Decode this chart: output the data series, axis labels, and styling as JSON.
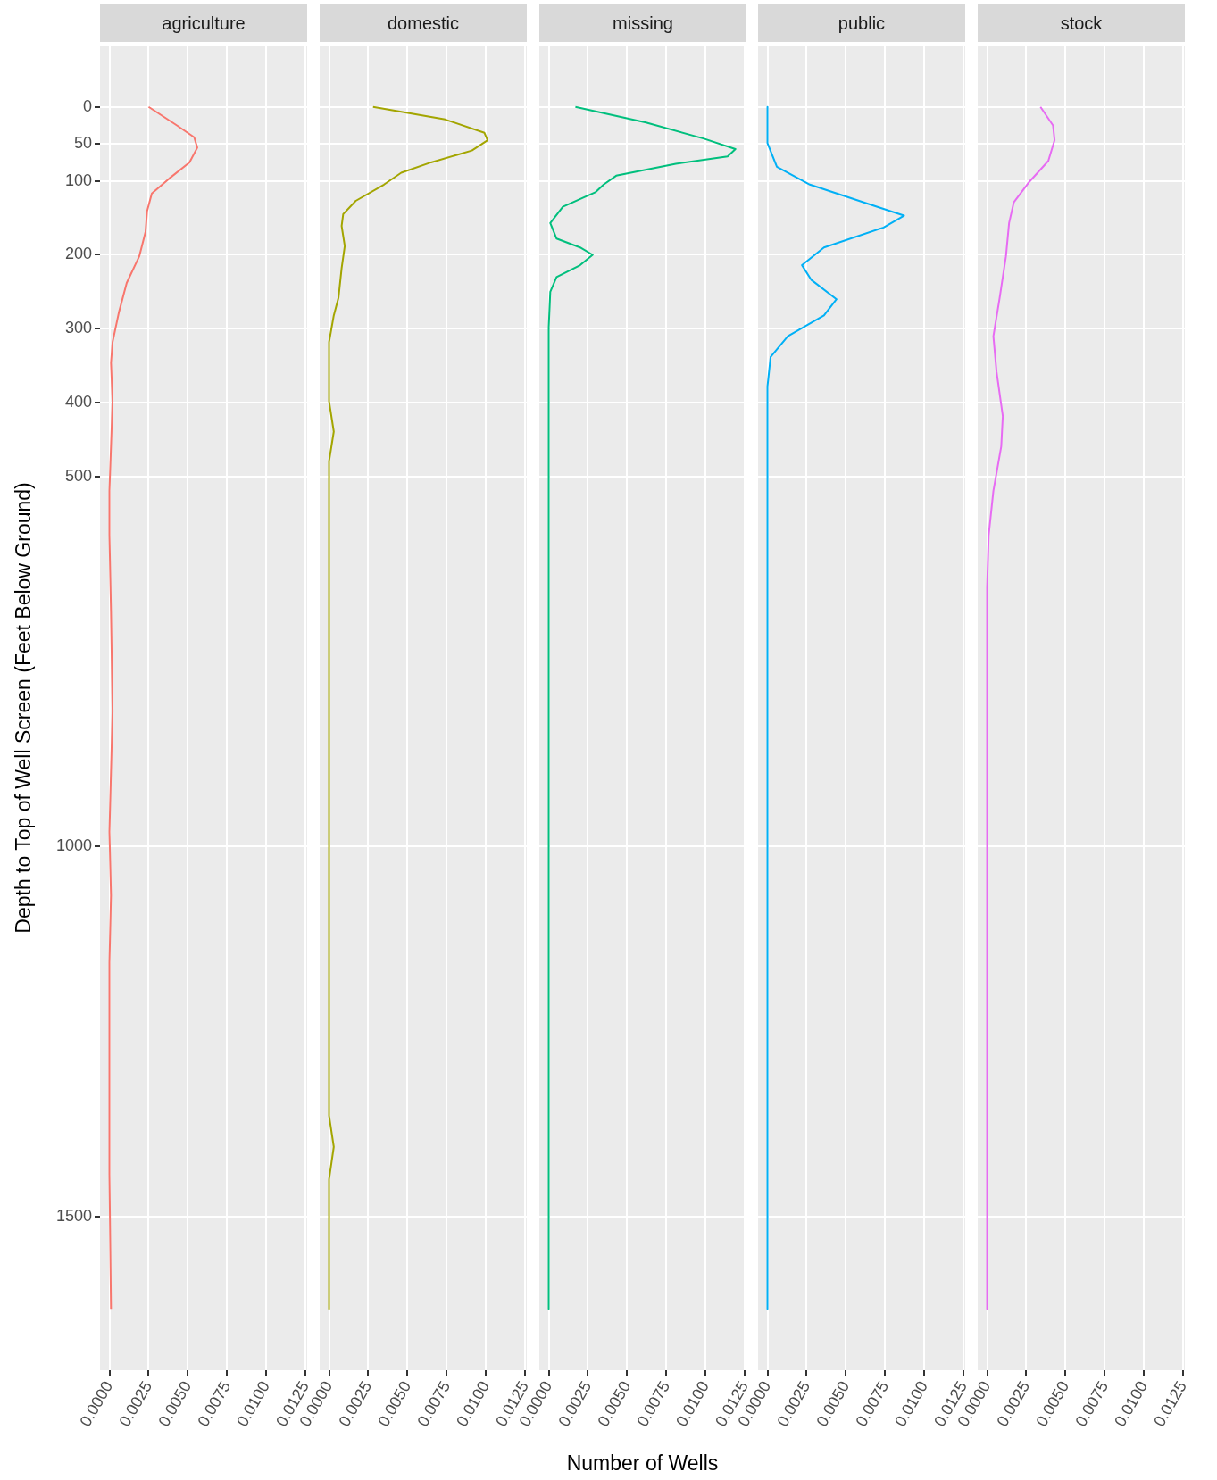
{
  "chart_data": [
    {
      "type": "line",
      "title": "agriculture",
      "ylabel": "Depth to Top of Well Screen (Feet Below Ground)",
      "xlim": [
        -0.0006,
        0.0126
      ],
      "ylim": [
        1708,
        -83
      ],
      "xticks": [
        {
          "value": 0,
          "label": "0.0000"
        },
        {
          "value": 0.0025,
          "label": "0.0025"
        },
        {
          "value": 0.005,
          "label": "0.0050"
        },
        {
          "value": 0.0075,
          "label": "0.0075"
        },
        {
          "value": 0.01,
          "label": "0.0100"
        },
        {
          "value": 0.0125,
          "label": "0.0125"
        }
      ],
      "yticks": [
        0,
        50,
        100,
        200,
        300,
        400,
        500,
        1000,
        1500
      ],
      "grid": true,
      "series": [
        {
          "color": "#f8766d",
          "x": [
            0.0025,
            0.0043,
            0.0054,
            0.0056,
            0.0051,
            0.0038,
            0.0027,
            0.0024,
            0.0023,
            0.0019,
            0.0011,
            0.0006,
            0.0002,
            0.0001,
            0.0002,
            0.0001,
            0,
            0,
            0.0001,
            0.0002,
            0,
            0.0001,
            0,
            0,
            0.0001
          ],
          "values": [
            0,
            25,
            41,
            55,
            75,
            97,
            117,
            141,
            169,
            202,
            238,
            278,
            318,
            346,
            398,
            459,
            519,
            579,
            682,
            817,
            980,
            1066,
            1157,
            1443,
            1625
          ]
        }
      ]
    },
    {
      "type": "line",
      "title": "domestic",
      "tick_labels": "x",
      "xlim": [
        -0.0006,
        0.0126
      ],
      "ylim": [
        1708,
        -83
      ],
      "xticks": [
        {
          "value": 0,
          "label": "0.0000"
        },
        {
          "value": 0.0025,
          "label": "0.0025"
        },
        {
          "value": 0.005,
          "label": "0.0050"
        },
        {
          "value": 0.0075,
          "label": "0.0075"
        },
        {
          "value": 0.01,
          "label": "0.0100"
        },
        {
          "value": 0.0125,
          "label": "0.0125"
        }
      ],
      "yticks": [
        0,
        50,
        100,
        200,
        300,
        400,
        500,
        1000,
        1500
      ],
      "grid": true,
      "series": [
        {
          "color": "#a3a500",
          "x": [
            0.0028,
            0.0074,
            0.0099,
            0.0101,
            0.0091,
            0.0065,
            0.0046,
            0.0035,
            0.0017,
            0.0009,
            0.0008,
            0.001,
            0.0008,
            0.0006,
            0.0003,
            0,
            0,
            0.0003,
            0,
            0,
            0.0003,
            0,
            0
          ],
          "values": [
            0,
            17,
            35,
            45,
            59,
            75,
            89,
            105,
            127,
            145,
            161,
            188,
            218,
            258,
            282,
            318,
            398,
            439,
            479,
            1364,
            1406,
            1450,
            1625
          ]
        }
      ]
    },
    {
      "type": "line",
      "title": "missing",
      "tick_labels": "x",
      "xlabel": "Number of Wells",
      "xlim": [
        -0.0006,
        0.0126
      ],
      "ylim": [
        1708,
        -83
      ],
      "xticks": [
        {
          "value": 0,
          "label": "0.0000"
        },
        {
          "value": 0.0025,
          "label": "0.0025"
        },
        {
          "value": 0.005,
          "label": "0.0050"
        },
        {
          "value": 0.0075,
          "label": "0.0075"
        },
        {
          "value": 0.01,
          "label": "0.0100"
        },
        {
          "value": 0.0125,
          "label": "0.0125"
        }
      ],
      "yticks": [
        0,
        50,
        100,
        200,
        300,
        400,
        500,
        1000,
        1500
      ],
      "grid": true,
      "series": [
        {
          "color": "#00bf7d",
          "x": [
            0.0017,
            0.0062,
            0.0099,
            0.0119,
            0.0114,
            0.0081,
            0.0043,
            0.0035,
            0.003,
            0.0009,
            0.0001,
            0.0005,
            0.002,
            0.0028,
            0.002,
            0.0005,
            0.0001,
            0,
            0
          ],
          "values": [
            0,
            21,
            43,
            57,
            67,
            77,
            93,
            105,
            115,
            135,
            157,
            178,
            190,
            200,
            214,
            230,
            250,
            298,
            1625
          ]
        }
      ]
    },
    {
      "type": "line",
      "title": "public",
      "tick_labels": "x",
      "xlim": [
        -0.0006,
        0.0126
      ],
      "ylim": [
        1708,
        -83
      ],
      "xticks": [
        {
          "value": 0,
          "label": "0.0000"
        },
        {
          "value": 0.0025,
          "label": "0.0025"
        },
        {
          "value": 0.005,
          "label": "0.0050"
        },
        {
          "value": 0.0075,
          "label": "0.0075"
        },
        {
          "value": 0.01,
          "label": "0.0100"
        },
        {
          "value": 0.0125,
          "label": "0.0125"
        }
      ],
      "yticks": [
        0,
        50,
        100,
        200,
        300,
        400,
        500,
        1000,
        1500
      ],
      "grid": true,
      "series": [
        {
          "color": "#00b0f6",
          "x": [
            0,
            0,
            0.0006,
            0.0027,
            0.0064,
            0.0087,
            0.0074,
            0.0036,
            0.0022,
            0.0028,
            0.0044,
            0.0036,
            0.0013,
            0.0002,
            0,
            0
          ],
          "values": [
            0,
            49,
            81,
            105,
            131,
            147,
            163,
            190,
            214,
            234,
            260,
            282,
            310,
            338,
            378,
            1625
          ]
        }
      ]
    },
    {
      "type": "line",
      "title": "stock",
      "tick_labels": "x",
      "xlim": [
        -0.0006,
        0.0126
      ],
      "ylim": [
        1708,
        -83
      ],
      "xticks": [
        {
          "value": 0,
          "label": "0.0000"
        },
        {
          "value": 0.0025,
          "label": "0.0025"
        },
        {
          "value": 0.005,
          "label": "0.0050"
        },
        {
          "value": 0.0075,
          "label": "0.0075"
        },
        {
          "value": 0.01,
          "label": "0.0100"
        },
        {
          "value": 0.0125,
          "label": "0.0125"
        }
      ],
      "yticks": [
        0,
        50,
        100,
        200,
        300,
        400,
        500,
        1000,
        1500
      ],
      "grid": true,
      "series": [
        {
          "color": "#e76bf3",
          "x": [
            0.0034,
            0.0042,
            0.0043,
            0.0039,
            0.0027,
            0.0017,
            0.0014,
            0.0012,
            0.0008,
            0.0004,
            0.0006,
            0.001,
            0.0009,
            0.0004,
            0.0001,
            0,
            0
          ],
          "values": [
            0,
            25,
            45,
            73,
            101,
            129,
            157,
            202,
            258,
            310,
            358,
            418,
            459,
            519,
            579,
            650,
            1625
          ]
        }
      ]
    }
  ]
}
